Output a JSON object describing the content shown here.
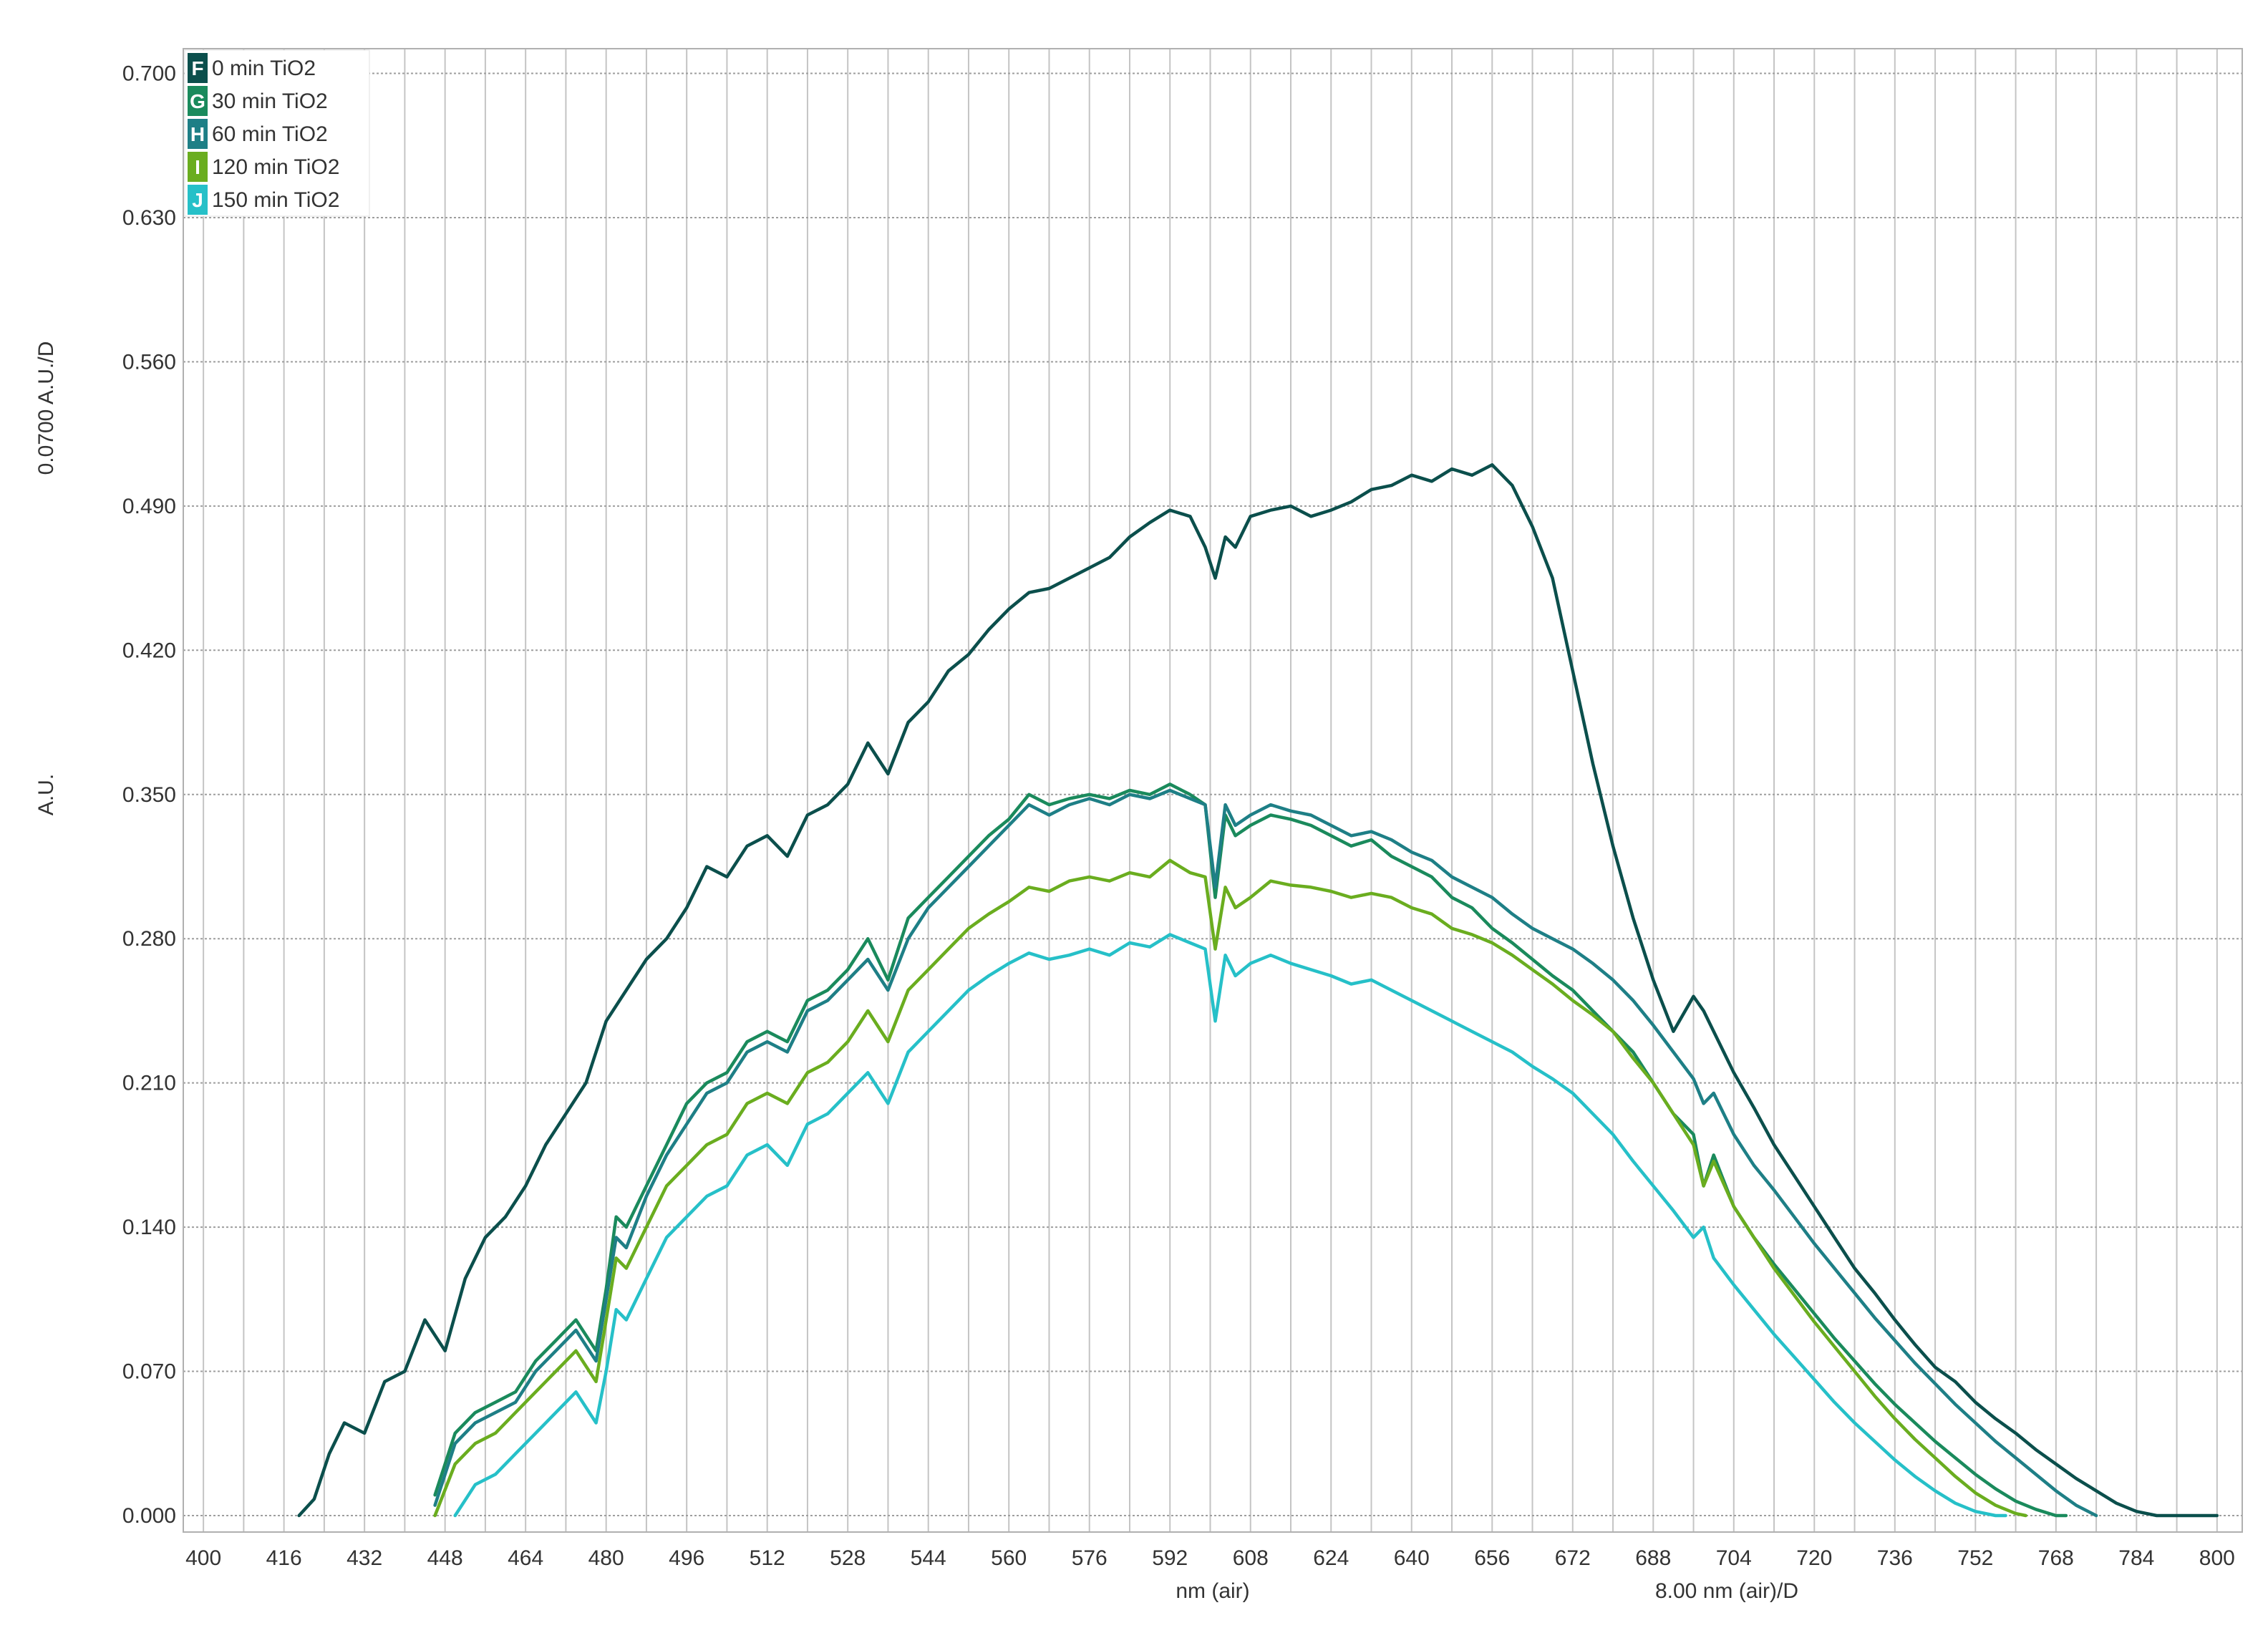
{
  "chart_data": {
    "type": "line",
    "title": "",
    "xlabel": "nm (air)",
    "xscale_label": "8.00 nm (air)/D",
    "ylabel": "A.U.",
    "yscale_label": "0.0700 A.U./D",
    "xlim": [
      396,
      805
    ],
    "ylim": [
      -0.008,
      0.712
    ],
    "x_ticks": [
      "400",
      "416",
      "432",
      "448",
      "464",
      "480",
      "496",
      "512",
      "528",
      "544",
      "560",
      "576",
      "592",
      "608",
      "624",
      "640",
      "656",
      "672",
      "688",
      "704",
      "720",
      "736",
      "752",
      "768",
      "784",
      "800"
    ],
    "y_ticks": [
      "0.000",
      "0.070",
      "0.140",
      "0.210",
      "0.280",
      "0.350",
      "0.420",
      "0.490",
      "0.560",
      "0.630",
      "0.700"
    ],
    "grid": true,
    "legend_position": "top-left",
    "series": [
      {
        "letter": "F",
        "name": "0 min TiO2",
        "color": "#0b4f4c",
        "x": [
          419,
          422,
          425,
          428,
          432,
          436,
          440,
          444,
          448,
          452,
          456,
          460,
          464,
          468,
          472,
          476,
          480,
          484,
          488,
          492,
          496,
          500,
          504,
          508,
          512,
          516,
          520,
          524,
          528,
          532,
          536,
          540,
          544,
          548,
          552,
          556,
          560,
          564,
          568,
          572,
          576,
          580,
          584,
          588,
          592,
          596,
          599,
          601,
          603,
          605,
          608,
          612,
          616,
          620,
          624,
          628,
          632,
          636,
          640,
          644,
          648,
          652,
          656,
          660,
          664,
          668,
          672,
          676,
          680,
          684,
          688,
          692,
          696,
          698,
          700,
          704,
          708,
          712,
          716,
          720,
          724,
          728,
          732,
          736,
          740,
          744,
          748,
          752,
          756,
          760,
          764,
          768,
          772,
          776,
          780,
          784,
          788,
          792,
          796,
          800
        ],
        "y": [
          0.0,
          0.008,
          0.03,
          0.045,
          0.04,
          0.065,
          0.07,
          0.095,
          0.08,
          0.115,
          0.135,
          0.145,
          0.16,
          0.18,
          0.195,
          0.21,
          0.24,
          0.255,
          0.27,
          0.28,
          0.295,
          0.315,
          0.31,
          0.325,
          0.33,
          0.32,
          0.34,
          0.345,
          0.355,
          0.375,
          0.36,
          0.385,
          0.395,
          0.41,
          0.418,
          0.43,
          0.44,
          0.448,
          0.45,
          0.455,
          0.46,
          0.465,
          0.475,
          0.482,
          0.488,
          0.485,
          0.47,
          0.455,
          0.475,
          0.47,
          0.485,
          0.488,
          0.49,
          0.485,
          0.488,
          0.492,
          0.498,
          0.5,
          0.505,
          0.502,
          0.508,
          0.505,
          0.51,
          0.5,
          0.48,
          0.455,
          0.41,
          0.365,
          0.325,
          0.29,
          0.26,
          0.235,
          0.252,
          0.245,
          0.235,
          0.215,
          0.198,
          0.18,
          0.165,
          0.15,
          0.135,
          0.12,
          0.108,
          0.095,
          0.083,
          0.072,
          0.065,
          0.055,
          0.047,
          0.04,
          0.032,
          0.025,
          0.018,
          0.012,
          0.006,
          0.002,
          0.0,
          0.0,
          0.0,
          0.0
        ]
      },
      {
        "letter": "G",
        "name": "30 min TiO2",
        "color": "#1a8a5c",
        "x": [
          446,
          450,
          454,
          458,
          462,
          466,
          470,
          474,
          478,
          480,
          482,
          484,
          488,
          492,
          496,
          500,
          504,
          508,
          512,
          516,
          520,
          524,
          528,
          532,
          536,
          540,
          544,
          548,
          552,
          556,
          560,
          564,
          568,
          572,
          576,
          580,
          584,
          588,
          592,
          596,
          599,
          601,
          603,
          605,
          608,
          612,
          616,
          620,
          624,
          628,
          632,
          636,
          640,
          644,
          648,
          652,
          656,
          660,
          664,
          668,
          672,
          676,
          680,
          684,
          688,
          692,
          696,
          698,
          700,
          704,
          708,
          712,
          716,
          720,
          724,
          728,
          732,
          736,
          740,
          744,
          748,
          752,
          756,
          760,
          764,
          768,
          770
        ],
        "y": [
          0.01,
          0.04,
          0.05,
          0.055,
          0.06,
          0.075,
          0.085,
          0.095,
          0.08,
          0.11,
          0.145,
          0.14,
          0.16,
          0.18,
          0.2,
          0.21,
          0.215,
          0.23,
          0.235,
          0.23,
          0.25,
          0.255,
          0.265,
          0.28,
          0.26,
          0.29,
          0.3,
          0.31,
          0.32,
          0.33,
          0.338,
          0.35,
          0.345,
          0.348,
          0.35,
          0.348,
          0.352,
          0.35,
          0.355,
          0.35,
          0.345,
          0.3,
          0.34,
          0.33,
          0.335,
          0.34,
          0.338,
          0.335,
          0.33,
          0.325,
          0.328,
          0.32,
          0.315,
          0.31,
          0.3,
          0.295,
          0.285,
          0.278,
          0.27,
          0.262,
          0.255,
          0.245,
          0.235,
          0.225,
          0.21,
          0.195,
          0.185,
          0.16,
          0.175,
          0.15,
          0.135,
          0.122,
          0.11,
          0.098,
          0.086,
          0.075,
          0.064,
          0.054,
          0.045,
          0.036,
          0.028,
          0.02,
          0.013,
          0.007,
          0.003,
          0.0,
          0.0
        ]
      },
      {
        "letter": "H",
        "name": "60 min TiO2",
        "color": "#1e7f86",
        "x": [
          446,
          450,
          454,
          458,
          462,
          466,
          470,
          474,
          478,
          480,
          482,
          484,
          488,
          492,
          496,
          500,
          504,
          508,
          512,
          516,
          520,
          524,
          528,
          532,
          536,
          540,
          544,
          548,
          552,
          556,
          560,
          564,
          568,
          572,
          576,
          580,
          584,
          588,
          592,
          596,
          599,
          601,
          603,
          605,
          608,
          612,
          616,
          620,
          624,
          628,
          632,
          636,
          640,
          644,
          648,
          652,
          656,
          660,
          664,
          668,
          672,
          676,
          680,
          684,
          688,
          692,
          696,
          698,
          700,
          704,
          708,
          712,
          716,
          720,
          724,
          728,
          732,
          736,
          740,
          744,
          748,
          752,
          756,
          760,
          764,
          768,
          772,
          776
        ],
        "y": [
          0.005,
          0.035,
          0.045,
          0.05,
          0.055,
          0.07,
          0.08,
          0.09,
          0.075,
          0.105,
          0.135,
          0.13,
          0.155,
          0.175,
          0.19,
          0.205,
          0.21,
          0.225,
          0.23,
          0.225,
          0.245,
          0.25,
          0.26,
          0.27,
          0.255,
          0.28,
          0.295,
          0.305,
          0.315,
          0.325,
          0.335,
          0.345,
          0.34,
          0.345,
          0.348,
          0.345,
          0.35,
          0.348,
          0.352,
          0.348,
          0.345,
          0.305,
          0.345,
          0.335,
          0.34,
          0.345,
          0.342,
          0.34,
          0.335,
          0.33,
          0.332,
          0.328,
          0.322,
          0.318,
          0.31,
          0.305,
          0.3,
          0.292,
          0.285,
          0.28,
          0.275,
          0.268,
          0.26,
          0.25,
          0.238,
          0.225,
          0.212,
          0.2,
          0.205,
          0.185,
          0.17,
          0.158,
          0.145,
          0.132,
          0.12,
          0.108,
          0.096,
          0.085,
          0.074,
          0.064,
          0.054,
          0.045,
          0.036,
          0.028,
          0.02,
          0.012,
          0.005,
          0.0
        ]
      },
      {
        "letter": "I",
        "name": "120 min TiO2",
        "color": "#6aad1f",
        "x": [
          446,
          450,
          454,
          458,
          462,
          466,
          470,
          474,
          478,
          480,
          482,
          484,
          488,
          492,
          496,
          500,
          504,
          508,
          512,
          516,
          520,
          524,
          528,
          532,
          536,
          540,
          544,
          548,
          552,
          556,
          560,
          564,
          568,
          572,
          576,
          580,
          584,
          588,
          592,
          596,
          599,
          601,
          603,
          605,
          608,
          612,
          616,
          620,
          624,
          628,
          632,
          636,
          640,
          644,
          648,
          652,
          656,
          660,
          664,
          668,
          672,
          676,
          680,
          684,
          688,
          692,
          696,
          698,
          700,
          704,
          708,
          712,
          716,
          720,
          724,
          728,
          732,
          736,
          740,
          744,
          748,
          752,
          756,
          760,
          762
        ],
        "y": [
          0.0,
          0.025,
          0.035,
          0.04,
          0.05,
          0.06,
          0.07,
          0.08,
          0.065,
          0.095,
          0.125,
          0.12,
          0.14,
          0.16,
          0.17,
          0.18,
          0.185,
          0.2,
          0.205,
          0.2,
          0.215,
          0.22,
          0.23,
          0.245,
          0.23,
          0.255,
          0.265,
          0.275,
          0.285,
          0.292,
          0.298,
          0.305,
          0.303,
          0.308,
          0.31,
          0.308,
          0.312,
          0.31,
          0.318,
          0.312,
          0.31,
          0.275,
          0.305,
          0.295,
          0.3,
          0.308,
          0.306,
          0.305,
          0.303,
          0.3,
          0.302,
          0.3,
          0.295,
          0.292,
          0.285,
          0.282,
          0.278,
          0.272,
          0.265,
          0.258,
          0.25,
          0.243,
          0.235,
          0.222,
          0.21,
          0.195,
          0.18,
          0.16,
          0.172,
          0.15,
          0.135,
          0.12,
          0.107,
          0.094,
          0.082,
          0.07,
          0.058,
          0.047,
          0.037,
          0.028,
          0.019,
          0.011,
          0.005,
          0.001,
          0.0
        ]
      },
      {
        "letter": "J",
        "name": "150 min TiO2",
        "color": "#26c0c8",
        "x": [
          450,
          454,
          458,
          462,
          466,
          470,
          474,
          478,
          480,
          482,
          484,
          488,
          492,
          496,
          500,
          504,
          508,
          512,
          516,
          520,
          524,
          528,
          532,
          536,
          540,
          544,
          548,
          552,
          556,
          560,
          564,
          568,
          572,
          576,
          580,
          584,
          588,
          592,
          596,
          599,
          601,
          603,
          605,
          608,
          612,
          616,
          620,
          624,
          628,
          632,
          636,
          640,
          644,
          648,
          652,
          656,
          660,
          664,
          668,
          672,
          676,
          680,
          684,
          688,
          692,
          696,
          698,
          700,
          704,
          708,
          712,
          716,
          720,
          724,
          728,
          732,
          736,
          740,
          744,
          748,
          752,
          756,
          758
        ],
        "y": [
          0.0,
          0.015,
          0.02,
          0.03,
          0.04,
          0.05,
          0.06,
          0.045,
          0.07,
          0.1,
          0.095,
          0.115,
          0.135,
          0.145,
          0.155,
          0.16,
          0.175,
          0.18,
          0.17,
          0.19,
          0.195,
          0.205,
          0.215,
          0.2,
          0.225,
          0.235,
          0.245,
          0.255,
          0.262,
          0.268,
          0.273,
          0.27,
          0.272,
          0.275,
          0.272,
          0.278,
          0.276,
          0.282,
          0.278,
          0.275,
          0.24,
          0.272,
          0.262,
          0.268,
          0.272,
          0.268,
          0.265,
          0.262,
          0.258,
          0.26,
          0.255,
          0.25,
          0.245,
          0.24,
          0.235,
          0.23,
          0.225,
          0.218,
          0.212,
          0.205,
          0.195,
          0.185,
          0.172,
          0.16,
          0.148,
          0.135,
          0.14,
          0.125,
          0.112,
          0.1,
          0.088,
          0.077,
          0.066,
          0.055,
          0.045,
          0.036,
          0.027,
          0.019,
          0.012,
          0.006,
          0.002,
          0.0,
          0.0
        ]
      }
    ]
  }
}
